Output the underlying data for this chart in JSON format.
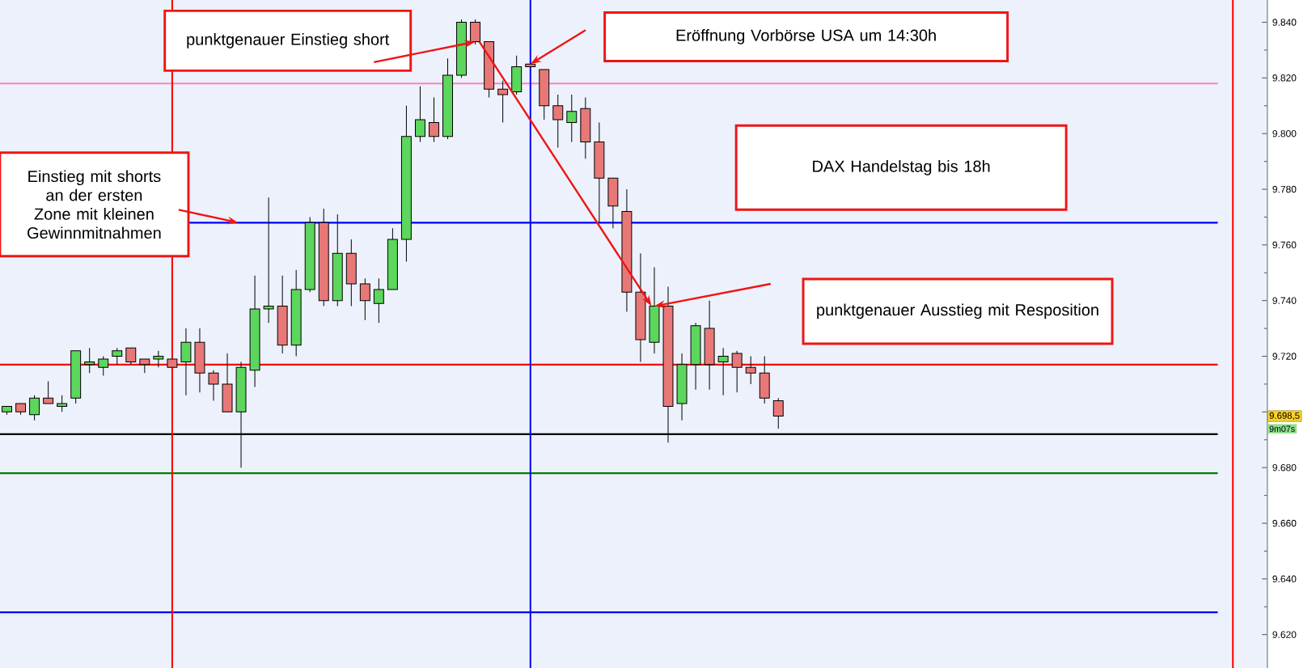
{
  "chart_data": {
    "type": "candlestick",
    "categories": [
      null,
      null,
      null,
      null,
      null,
      null,
      null,
      null,
      null,
      null,
      null,
      null,
      null,
      null,
      null,
      null,
      null,
      null,
      null,
      null,
      null,
      null,
      null,
      null,
      null,
      null,
      null,
      null,
      null,
      null,
      null,
      null,
      null,
      null,
      null,
      null,
      null,
      null,
      null,
      null,
      null,
      null,
      null,
      null,
      null,
      null,
      null,
      null,
      null,
      null,
      null,
      null,
      null,
      null,
      null,
      null,
      null,
      null,
      null,
      null,
      null,
      null,
      null,
      null,
      null,
      null,
      null,
      null,
      null,
      null,
      null,
      null,
      null,
      null,
      null,
      null,
      null,
      null,
      null,
      null,
      null,
      null,
      null,
      null,
      null,
      null,
      null,
      null,
      null,
      null,
      null,
      null
    ],
    "ohlc": [
      [
        9700,
        9702,
        9699,
        9702
      ],
      [
        9703,
        9703,
        9699,
        9700
      ],
      [
        9699,
        9706,
        9697,
        9705
      ],
      [
        9705,
        9711,
        9703,
        9703
      ],
      [
        9702,
        9706,
        9700,
        9703
      ],
      [
        9705,
        9722,
        9703,
        9722
      ],
      [
        9717,
        9723,
        9714,
        9718
      ],
      [
        9716,
        9720,
        9713,
        9719
      ],
      [
        9720,
        9723,
        9717,
        9722
      ],
      [
        9723,
        9723,
        9717,
        9718
      ],
      [
        9719,
        9719,
        9714,
        9717
      ],
      [
        9719,
        9722,
        9716,
        9720
      ],
      [
        9719,
        9719,
        9716,
        9716
      ],
      [
        9718,
        9730,
        9706,
        9725
      ],
      [
        9725,
        9730,
        9707,
        9714
      ],
      [
        9714,
        9715,
        9704,
        9710
      ],
      [
        9710,
        9721,
        9700,
        9700
      ],
      [
        9700,
        9718,
        9680,
        9716
      ],
      [
        9715,
        9749,
        9709,
        9737
      ],
      [
        9737,
        9777,
        9732,
        9738
      ],
      [
        9738,
        9749,
        9721,
        9724
      ],
      [
        9724,
        9751,
        9720,
        9744
      ],
      [
        9744,
        9770,
        9743,
        9768
      ],
      [
        9768,
        9773,
        9738,
        9740
      ],
      [
        9740,
        9771,
        9738,
        9757
      ],
      [
        9757,
        9762,
        9738,
        9746
      ],
      [
        9746,
        9748,
        9733,
        9740
      ],
      [
        9739,
        9748,
        9732,
        9744
      ],
      [
        9744,
        9766,
        9744,
        9762
      ],
      [
        9762,
        9810,
        9754,
        9799
      ],
      [
        9799,
        9817,
        9797,
        9805
      ],
      [
        9804,
        9813,
        9797,
        9799
      ],
      [
        9799,
        9827,
        9798,
        9821
      ],
      [
        9821,
        9841,
        9820,
        9840
      ],
      [
        9840,
        9841,
        9832,
        9833
      ],
      [
        9833,
        9833,
        9813,
        9816
      ],
      [
        9816,
        9819,
        9804,
        9814
      ],
      [
        9815,
        9828,
        9814,
        9824
      ],
      [
        9825,
        9825,
        9824,
        9824
      ],
      [
        9823,
        9823,
        9805,
        9810
      ],
      [
        9810,
        9814,
        9795,
        9805
      ],
      [
        9804,
        9814,
        9797,
        9808
      ],
      [
        9809,
        9813,
        9791,
        9797
      ],
      [
        9797,
        9804,
        9768,
        9784
      ],
      [
        9784,
        9784,
        9766,
        9774
      ],
      [
        9772,
        9780,
        9736,
        9743
      ],
      [
        9743,
        9757,
        9718,
        9726
      ],
      [
        9725,
        9752,
        9721,
        9738
      ],
      [
        9738,
        9745,
        9689,
        9702
      ],
      [
        9703,
        9721,
        9697,
        9717
      ],
      [
        9717,
        9732,
        9708,
        9731
      ],
      [
        9730,
        9740,
        9708,
        9717
      ],
      [
        9718,
        9723,
        9706,
        9720
      ],
      [
        9721,
        9722,
        9707,
        9716
      ],
      [
        9716,
        9720,
        9710,
        9714
      ],
      [
        9714,
        9720,
        9703,
        9705
      ],
      [
        9704,
        9705,
        9694,
        9698.5
      ],
      null,
      null,
      null,
      null,
      null,
      null,
      null,
      null,
      null,
      null,
      null,
      null,
      null,
      null,
      null,
      null,
      null,
      null,
      null,
      null,
      null,
      null,
      null,
      null,
      null,
      null,
      null,
      null,
      null,
      null,
      null,
      null,
      null,
      null,
      null
    ],
    "ylim": [
      9608,
      9848
    ],
    "yticks": [
      {
        "value": 9620,
        "label": "9.620"
      },
      {
        "value": 9640,
        "label": "9.640"
      },
      {
        "value": 9660,
        "label": "9.660"
      },
      {
        "value": 9680,
        "label": "9.680"
      },
      {
        "value": 9700,
        "label": null
      },
      {
        "value": 9720,
        "label": "9.720"
      },
      {
        "value": 9740,
        "label": "9.740"
      },
      {
        "value": 9760,
        "label": "9.760"
      },
      {
        "value": 9780,
        "label": "9.780"
      },
      {
        "value": 9800,
        "label": "9.800"
      },
      {
        "value": 9820,
        "label": "9.820"
      },
      {
        "value": 9840,
        "label": "9.840"
      }
    ],
    "tick_labels": "y",
    "ref_lines": [
      {
        "axis": "y",
        "value": 9818,
        "color": "#ff80c0"
      },
      {
        "axis": "y",
        "value": 9768,
        "color": "#0000ff"
      },
      {
        "axis": "y",
        "value": 9717,
        "color": "#ff0000"
      },
      {
        "axis": "y",
        "value": 9692,
        "color": "#000000"
      },
      {
        "axis": "y",
        "value": 9678,
        "color": "#008000"
      },
      {
        "axis": "y",
        "value": 9628,
        "color": "#0000ff"
      }
    ],
    "annotations": [
      "punktgenauer Einstieg short",
      "Eröffnung Vorbörse USA um 14:30h",
      "DAX Handelstag bis 18h",
      "Einstieg mit shorts an der ersten Zone mit kleinen Gewinnmitnahmen",
      "punktgenauer Ausstieg mit Resposition",
      {
        "text": "9.698,5",
        "y": 9698.5
      },
      "9m07s"
    ]
  }
}
